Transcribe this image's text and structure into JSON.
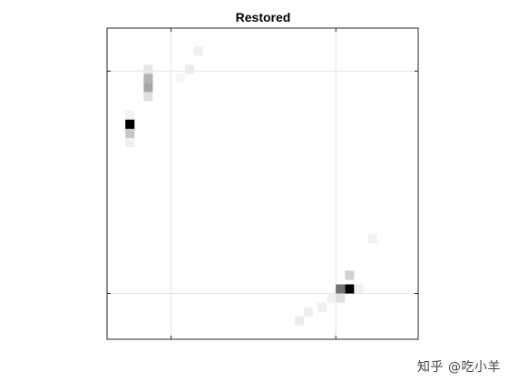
{
  "chart_data": {
    "type": "heatmap",
    "title": "Restored",
    "xlabel": "",
    "ylabel": "",
    "grid": true,
    "colormap": "white-to-black",
    "xlim": [
      0,
      34
    ],
    "ylim": [
      0,
      34
    ],
    "x_ticks": [
      7,
      25
    ],
    "y_ticks": [
      4.7,
      29
    ],
    "x_tick_labels": [
      "",
      ""
    ],
    "y_tick_labels": [
      "",
      ""
    ],
    "cells": [
      {
        "x": 10,
        "y": 2.5,
        "v": 0.06
      },
      {
        "x": 9,
        "y": 4.5,
        "v": 0.08
      },
      {
        "x": 8,
        "y": 5.5,
        "v": 0.04
      },
      {
        "x": 4.5,
        "y": 4.5,
        "v": 0.1
      },
      {
        "x": 4.5,
        "y": 5.5,
        "v": 0.3
      },
      {
        "x": 4.5,
        "y": 6.5,
        "v": 0.35
      },
      {
        "x": 4.5,
        "y": 7.5,
        "v": 0.12
      },
      {
        "x": 2.5,
        "y": 9.5,
        "v": 0.05
      },
      {
        "x": 2.5,
        "y": 10.5,
        "v": 1.0
      },
      {
        "x": 2.5,
        "y": 11.5,
        "v": 0.22
      },
      {
        "x": 2.5,
        "y": 12.5,
        "v": 0.06
      },
      {
        "x": 29,
        "y": 23,
        "v": 0.05
      },
      {
        "x": 26.5,
        "y": 27,
        "v": 0.18
      },
      {
        "x": 26.5,
        "y": 28.5,
        "v": 1.0
      },
      {
        "x": 25.5,
        "y": 28.5,
        "v": 0.55
      },
      {
        "x": 27.5,
        "y": 28.5,
        "v": 0.06
      },
      {
        "x": 25.5,
        "y": 29.5,
        "v": 0.12
      },
      {
        "x": 24.5,
        "y": 29.5,
        "v": 0.05
      },
      {
        "x": 23.5,
        "y": 30.5,
        "v": 0.06
      },
      {
        "x": 22,
        "y": 31,
        "v": 0.06
      },
      {
        "x": 21,
        "y": 32,
        "v": 0.07
      }
    ]
  },
  "watermark": "知乎 @吃小羊"
}
